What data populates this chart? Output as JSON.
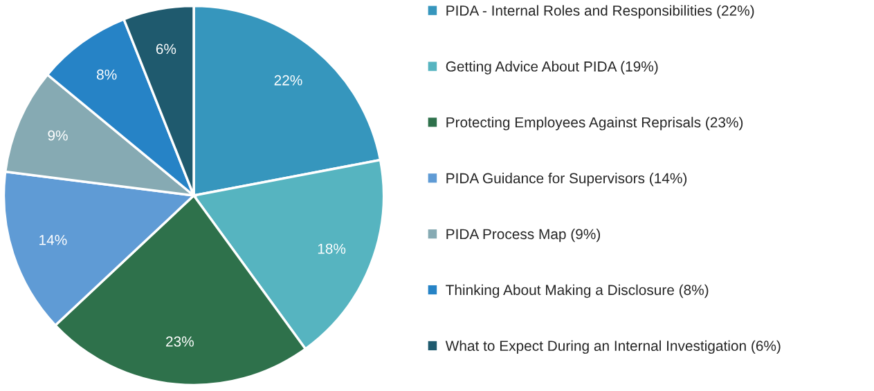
{
  "chart_data": {
    "type": "pie",
    "categories": [
      "PIDA - Internal Roles and Responsibilities (22%)",
      "Getting Advice About PIDA (19%)",
      "Protecting Employees Against Reprisals (23%)",
      "PIDA Guidance for Supervisors (14%)",
      "PIDA Process Map (9%)",
      "Thinking About Making a Disclosure (8%)",
      "What to Expect During an Internal Investigation (6%)"
    ],
    "values": [
      22,
      18,
      23,
      14,
      9,
      8,
      6
    ],
    "value_labels": [
      "22%",
      "18%",
      "23%",
      "14%",
      "9%",
      "8%",
      "6%"
    ],
    "colors": [
      "#3696bd",
      "#56b4c0",
      "#2e714b",
      "#5f9bd5",
      "#86aab3",
      "#2683c6",
      "#1f5a6e"
    ],
    "legend": "right"
  }
}
